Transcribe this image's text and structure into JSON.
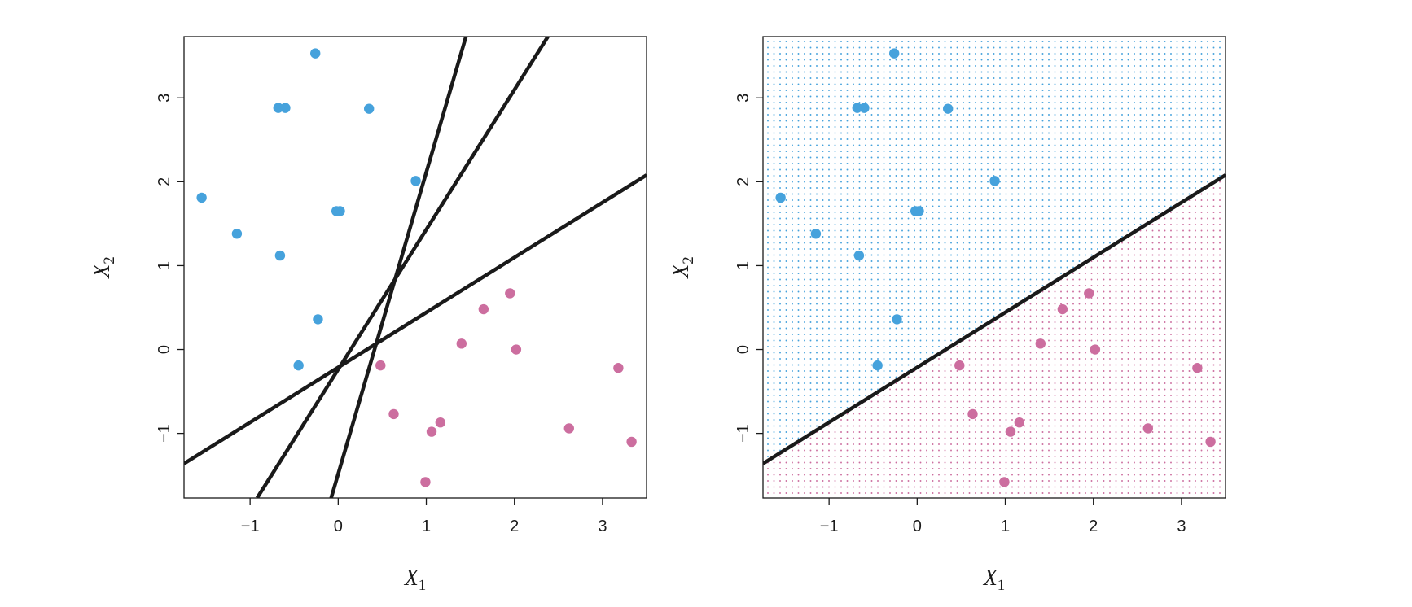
{
  "chart_data": [
    {
      "type": "scatter",
      "panel": "left",
      "title": "",
      "xlabel": {
        "base": "X",
        "sub": "1"
      },
      "ylabel": {
        "base": "X",
        "sub": "2"
      },
      "xlim": [
        -1.75,
        3.5
      ],
      "ylim": [
        -1.77,
        3.73
      ],
      "xticks": [
        -1,
        0,
        1,
        2,
        3
      ],
      "yticks": [
        -1,
        0,
        1,
        2,
        3
      ],
      "xtick_labels": [
        "−1",
        "0",
        "1",
        "2",
        "3"
      ],
      "ytick_labels": [
        "−1",
        "0",
        "1",
        "2",
        "3"
      ],
      "grid": false,
      "legend": "none",
      "series": [
        {
          "color": "#46a2dc",
          "points": [
            {
              "x": -0.26,
              "y": 3.53
            },
            {
              "x": -0.68,
              "y": 2.88
            },
            {
              "x": -0.6,
              "y": 2.88
            },
            {
              "x": 0.35,
              "y": 2.87
            },
            {
              "x": 0.88,
              "y": 2.01
            },
            {
              "x": -1.55,
              "y": 1.81
            },
            {
              "x": -0.02,
              "y": 1.65
            },
            {
              "x": 0.02,
              "y": 1.65
            },
            {
              "x": -1.15,
              "y": 1.38
            },
            {
              "x": -0.66,
              "y": 1.12
            },
            {
              "x": -0.23,
              "y": 0.36
            },
            {
              "x": -0.45,
              "y": -0.19
            }
          ]
        },
        {
          "color": "#cc6e9f",
          "points": [
            {
              "x": 1.95,
              "y": 0.67
            },
            {
              "x": 1.65,
              "y": 0.48
            },
            {
              "x": 1.4,
              "y": 0.07
            },
            {
              "x": 2.02,
              "y": 0.0
            },
            {
              "x": 0.48,
              "y": -0.19
            },
            {
              "x": 3.18,
              "y": -0.22
            },
            {
              "x": 0.63,
              "y": -0.77
            },
            {
              "x": 1.16,
              "y": -0.87
            },
            {
              "x": 1.06,
              "y": -0.98
            },
            {
              "x": 2.62,
              "y": -0.94
            },
            {
              "x": 3.33,
              "y": -1.1
            },
            {
              "x": 0.99,
              "y": -1.58
            }
          ]
        }
      ],
      "lines": [
        {
          "x1": -1.75,
          "y1": -1.36,
          "x2": 3.5,
          "y2": 2.08
        },
        {
          "x1": -0.92,
          "y1": -1.77,
          "x2": 2.38,
          "y2": 3.73
        },
        {
          "x1": -0.08,
          "y1": -1.77,
          "x2": 1.45,
          "y2": 3.73
        }
      ]
    },
    {
      "type": "scatter",
      "panel": "right",
      "title": "",
      "xlabel": {
        "base": "X",
        "sub": "1"
      },
      "ylabel": {
        "base": "X",
        "sub": "2"
      },
      "xlim": [
        -1.75,
        3.5
      ],
      "ylim": [
        -1.77,
        3.73
      ],
      "xticks": [
        -1,
        0,
        1,
        2,
        3
      ],
      "yticks": [
        -1,
        0,
        1,
        2,
        3
      ],
      "xtick_labels": [
        "−1",
        "0",
        "1",
        "2",
        "3"
      ],
      "ytick_labels": [
        "−1",
        "0",
        "1",
        "2",
        "3"
      ],
      "grid": false,
      "legend": "none",
      "background_regions": {
        "above_line_color": "#46a2dc",
        "below_line_color": "#cc6e9f",
        "pattern": "dot-grid"
      },
      "series": [
        {
          "color": "#46a2dc",
          "points": [
            {
              "x": -0.26,
              "y": 3.53
            },
            {
              "x": -0.68,
              "y": 2.88
            },
            {
              "x": -0.6,
              "y": 2.88
            },
            {
              "x": 0.35,
              "y": 2.87
            },
            {
              "x": 0.88,
              "y": 2.01
            },
            {
              "x": -1.55,
              "y": 1.81
            },
            {
              "x": -0.02,
              "y": 1.65
            },
            {
              "x": 0.02,
              "y": 1.65
            },
            {
              "x": -1.15,
              "y": 1.38
            },
            {
              "x": -0.66,
              "y": 1.12
            },
            {
              "x": -0.23,
              "y": 0.36
            },
            {
              "x": -0.45,
              "y": -0.19
            }
          ]
        },
        {
          "color": "#cc6e9f",
          "points": [
            {
              "x": 1.95,
              "y": 0.67
            },
            {
              "x": 1.65,
              "y": 0.48
            },
            {
              "x": 1.4,
              "y": 0.07
            },
            {
              "x": 2.02,
              "y": 0.0
            },
            {
              "x": 0.48,
              "y": -0.19
            },
            {
              "x": 3.18,
              "y": -0.22
            },
            {
              "x": 0.63,
              "y": -0.77
            },
            {
              "x": 1.16,
              "y": -0.87
            },
            {
              "x": 1.06,
              "y": -0.98
            },
            {
              "x": 2.62,
              "y": -0.94
            },
            {
              "x": 3.33,
              "y": -1.1
            },
            {
              "x": 0.99,
              "y": -1.58
            }
          ]
        }
      ],
      "lines": [
        {
          "x1": -1.75,
          "y1": -1.36,
          "x2": 3.5,
          "y2": 2.08
        }
      ]
    }
  ]
}
